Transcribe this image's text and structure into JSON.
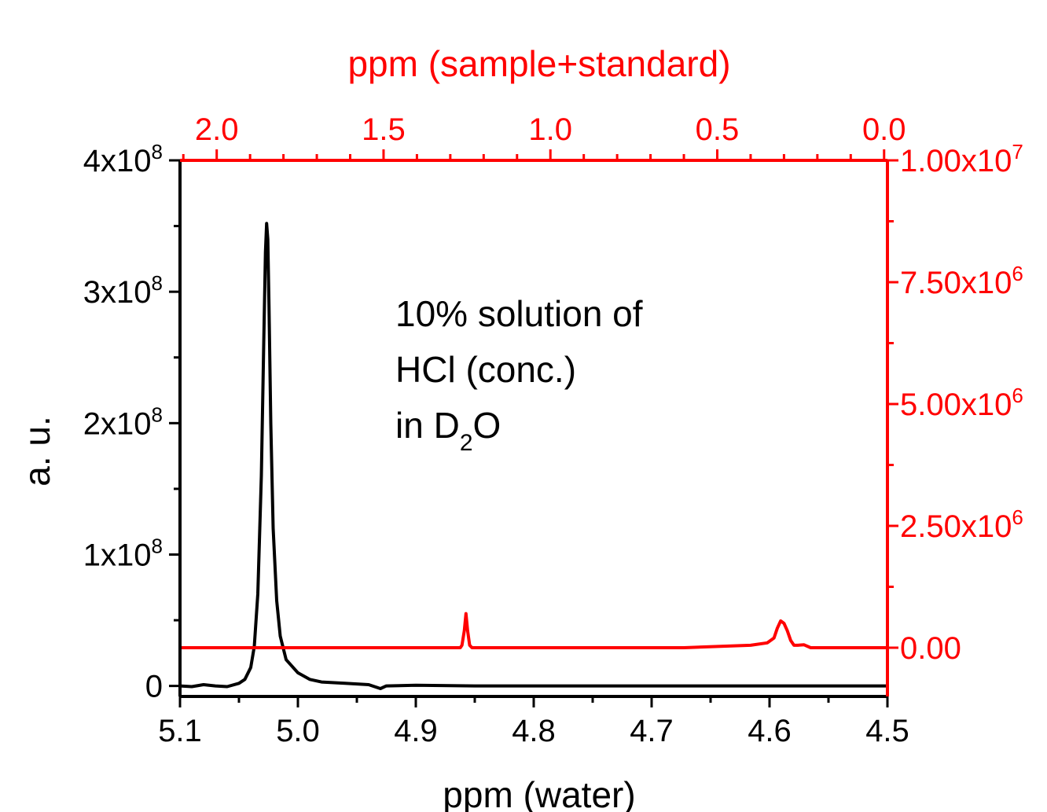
{
  "chart_data": {
    "type": "line",
    "xlabel_bottom": "ppm (water)",
    "xlabel_top": "ppm (sample+standard)",
    "ylabel_left": "a. u.",
    "ylabel_right": "",
    "annotation": [
      "10% solution of",
      "HCl (conc.)",
      "in D",
      "2",
      "O"
    ],
    "x_bottom": {
      "range": [
        5.1,
        4.5
      ],
      "ticks": [
        5.1,
        5.0,
        4.9,
        4.8,
        4.7,
        4.6,
        4.5
      ],
      "tick_labels": [
        "5.1",
        "5.0",
        "4.9",
        "4.8",
        "4.7",
        "4.6",
        "4.5"
      ]
    },
    "x_top": {
      "range": [
        2.11,
        -0.01
      ],
      "ticks": [
        2.0,
        1.5,
        1.0,
        0.5,
        0.0
      ],
      "tick_labels": [
        "2.0",
        "1.5",
        "1.0",
        "0.5",
        "0.0"
      ]
    },
    "y_left": {
      "range": [
        -8000000,
        400000000
      ],
      "ticks": [
        0,
        100000000,
        200000000,
        300000000,
        400000000
      ],
      "tick_labels": [
        {
          "base": "0",
          "exp": ""
        },
        {
          "base": "1x10",
          "exp": "8"
        },
        {
          "base": "2x10",
          "exp": "8"
        },
        {
          "base": "3x10",
          "exp": "8"
        },
        {
          "base": "4x10",
          "exp": "8"
        }
      ]
    },
    "y_right": {
      "range": [
        -1000000,
        10000000
      ],
      "ticks": [
        0,
        2500000,
        5000000,
        7500000,
        10000000
      ],
      "tick_labels": [
        {
          "base": "0.00",
          "exp": ""
        },
        {
          "base": "2.50x10",
          "exp": "6"
        },
        {
          "base": "5.00x10",
          "exp": "6"
        },
        {
          "base": "7.50x10",
          "exp": "6"
        },
        {
          "base": "1.00x10",
          "exp": "7"
        }
      ]
    },
    "series": [
      {
        "axis": "bottom-left",
        "color": "#000000",
        "points": [
          [
            5.1,
            0
          ],
          [
            5.09,
            -500000
          ],
          [
            5.08,
            1000000
          ],
          [
            5.07,
            0
          ],
          [
            5.06,
            -500000
          ],
          [
            5.05,
            2000000
          ],
          [
            5.045,
            5000000
          ],
          [
            5.04,
            14000000
          ],
          [
            5.037,
            30000000
          ],
          [
            5.034,
            70000000
          ],
          [
            5.031,
            160000000
          ],
          [
            5.029,
            260000000
          ],
          [
            5.0275,
            330000000
          ],
          [
            5.0265,
            352000000
          ],
          [
            5.0255,
            340000000
          ],
          [
            5.0245,
            290000000
          ],
          [
            5.023,
            200000000
          ],
          [
            5.021,
            120000000
          ],
          [
            5.018,
            65000000
          ],
          [
            5.015,
            38000000
          ],
          [
            5.01,
            20000000
          ],
          [
            5.0,
            10000000
          ],
          [
            4.99,
            5000000
          ],
          [
            4.98,
            3000000
          ],
          [
            4.96,
            2000000
          ],
          [
            4.94,
            1000000
          ],
          [
            4.93,
            -2000000
          ],
          [
            4.925,
            0
          ],
          [
            4.9,
            500000
          ],
          [
            4.85,
            0
          ],
          [
            4.8,
            0
          ],
          [
            4.7,
            0
          ],
          [
            4.6,
            0
          ],
          [
            4.5,
            0
          ]
        ]
      },
      {
        "axis": "top-right",
        "color": "#ff0000",
        "points": [
          [
            2.11,
            0
          ],
          [
            1.5,
            0
          ],
          [
            1.27,
            0
          ],
          [
            1.265,
            50000
          ],
          [
            1.258,
            350000
          ],
          [
            1.253,
            700000
          ],
          [
            1.248,
            350000
          ],
          [
            1.242,
            50000
          ],
          [
            1.235,
            0
          ],
          [
            1.0,
            0
          ],
          [
            0.6,
            0
          ],
          [
            0.4,
            50000
          ],
          [
            0.35,
            100000
          ],
          [
            0.33,
            200000
          ],
          [
            0.32,
            400000
          ],
          [
            0.31,
            550000
          ],
          [
            0.3,
            500000
          ],
          [
            0.29,
            350000
          ],
          [
            0.28,
            150000
          ],
          [
            0.27,
            50000
          ],
          [
            0.26,
            50000
          ],
          [
            0.24,
            60000
          ],
          [
            0.22,
            0
          ],
          [
            0.1,
            0
          ],
          [
            -0.01,
            0
          ]
        ]
      }
    ],
    "grid": false,
    "legend": "none"
  }
}
